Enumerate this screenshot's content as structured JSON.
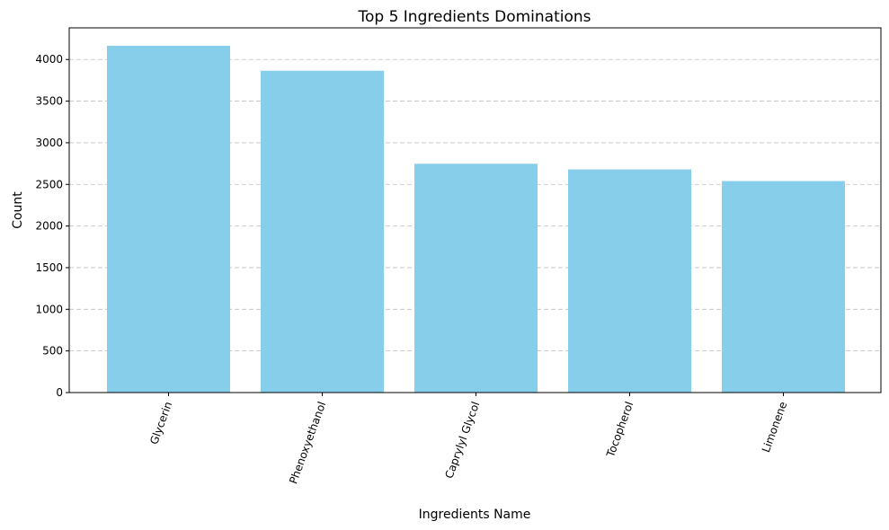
{
  "chart_data": {
    "type": "bar",
    "title": "Top 5 Ingredients Dominations",
    "xlabel": "Ingredients Name",
    "ylabel": "Count",
    "categories": [
      "Glycerin",
      "Phenoxyethanol",
      "Caprylyl Glycol",
      "Tocopherol",
      "Limonene"
    ],
    "values": [
      4165,
      3865,
      2748,
      2680,
      2540
    ],
    "ylim": [
      0,
      4380
    ],
    "yticks": [
      0,
      500,
      1000,
      1500,
      2000,
      2500,
      3000,
      3500,
      4000
    ],
    "grid": "y-dashed",
    "bar_color": "#87CEEB",
    "xtick_rotation": 70
  }
}
